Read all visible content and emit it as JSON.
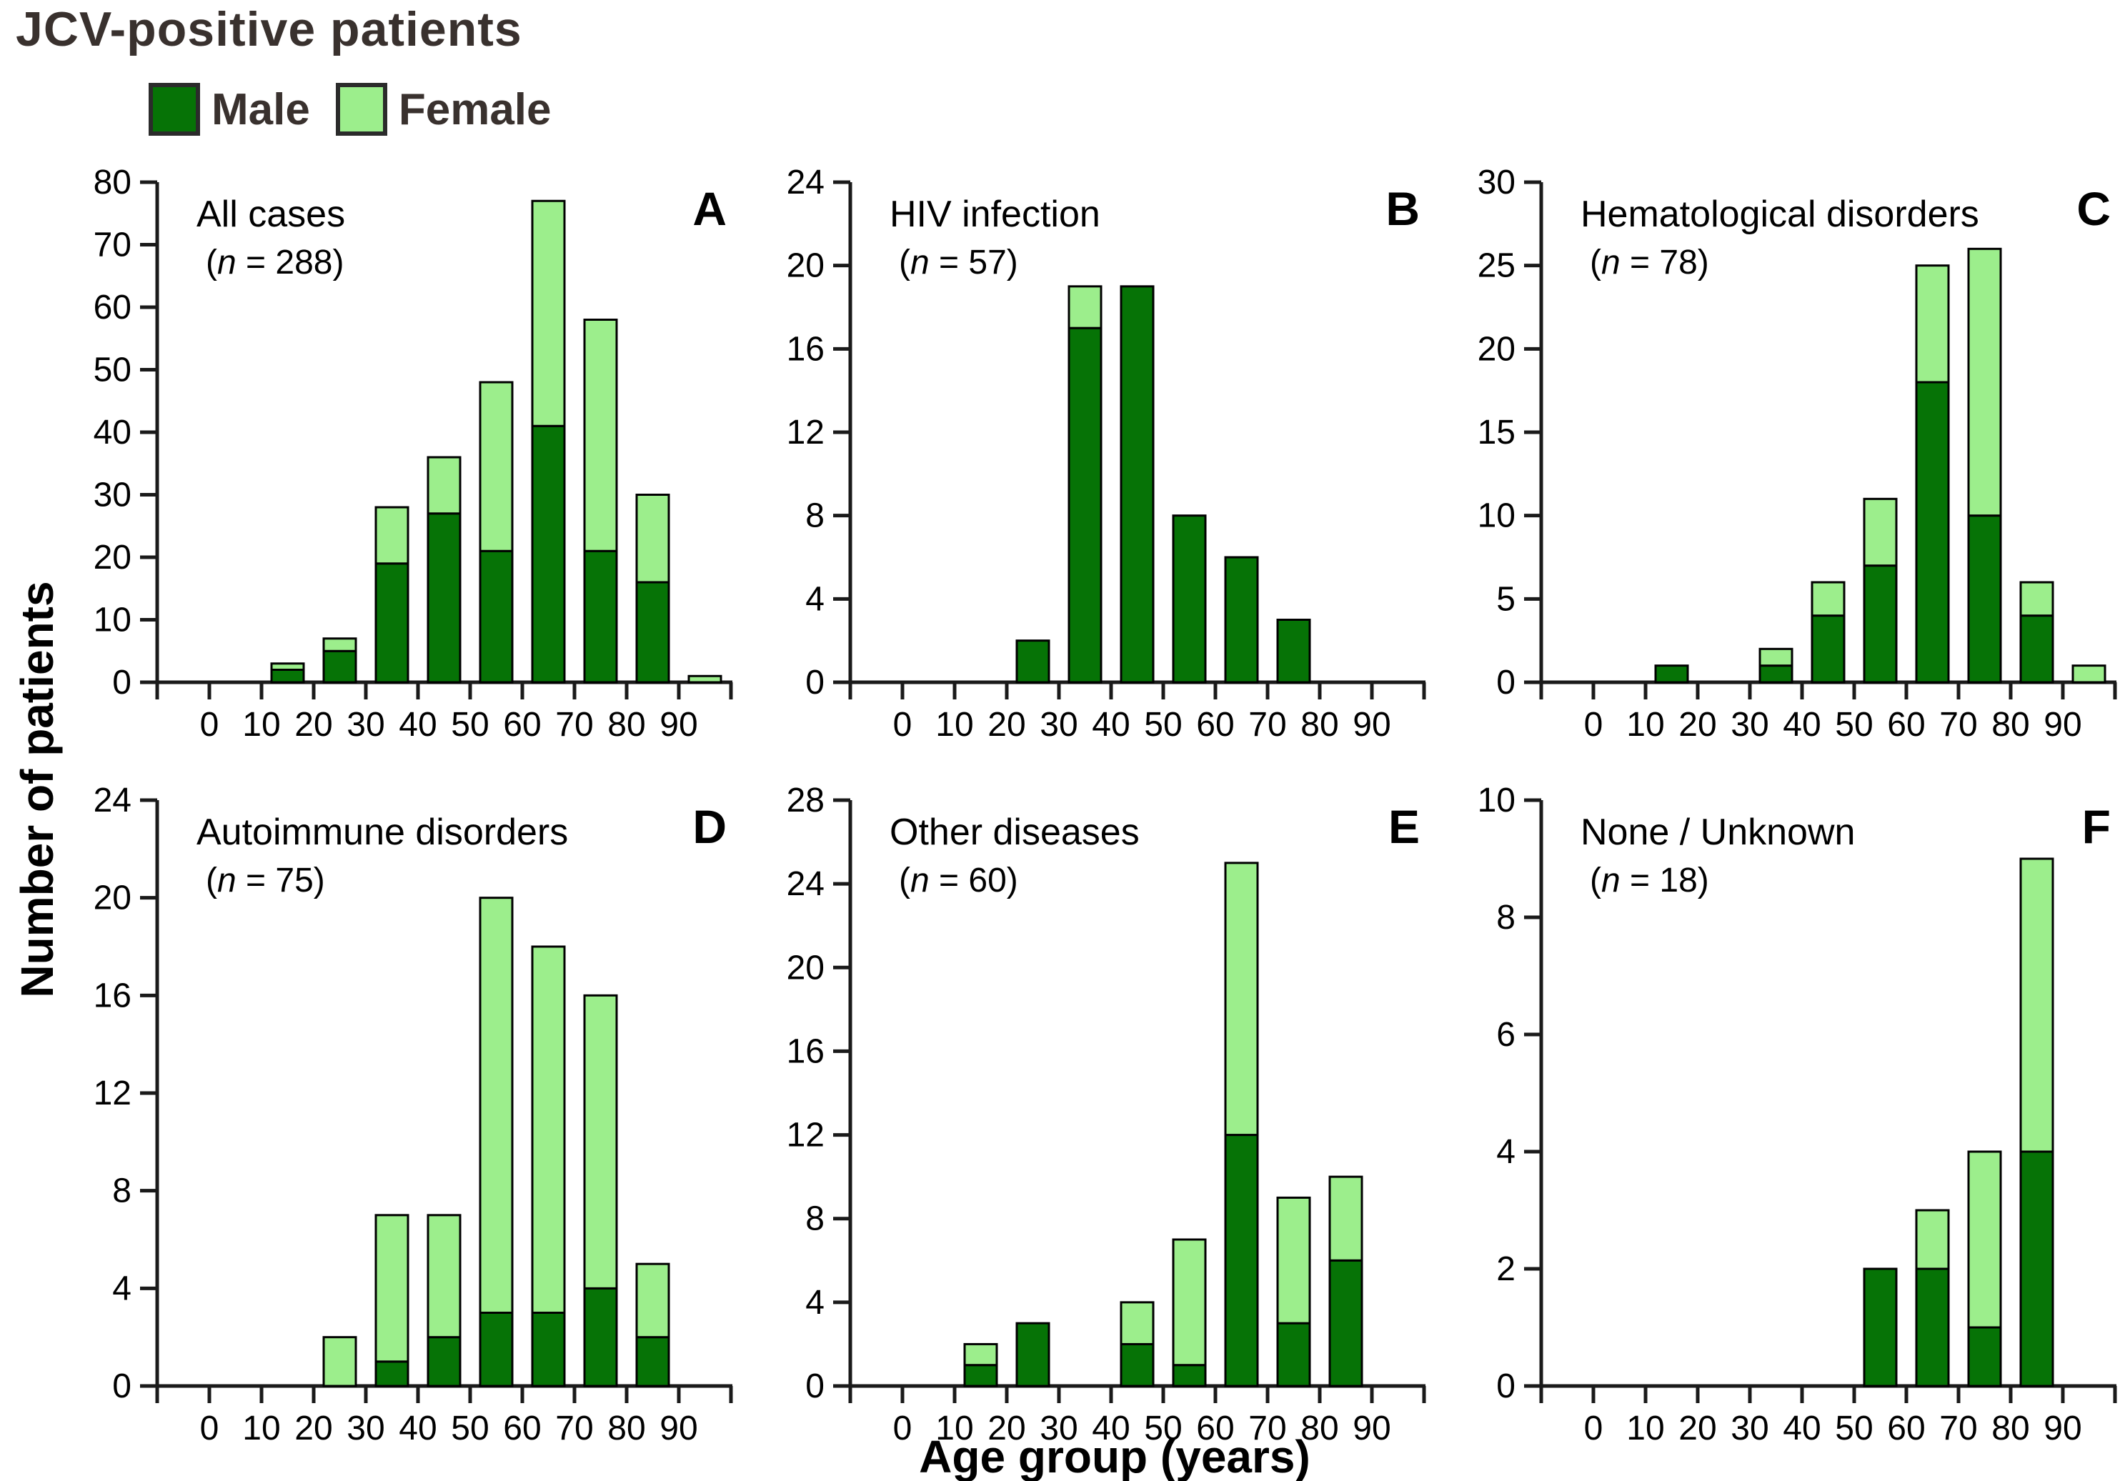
{
  "title": "JCV-positive patients",
  "legend": {
    "male_label": "Male",
    "female_label": "Female"
  },
  "colors": {
    "male": "#067306",
    "female": "#9CEE8C",
    "bar_border": "#000000",
    "axis": "#1A1A1A",
    "heading_text": "#39312E"
  },
  "axes": {
    "y_label": "Number of patients",
    "x_label": "Age group (years)"
  },
  "chart_data": [
    {
      "type": "bar",
      "stacked": true,
      "panel_letter": "A",
      "title": "All cases",
      "n_open": "(",
      "n_symbol": "n",
      "n_rest": " = 288)",
      "n_value": 288,
      "categories": [
        0,
        10,
        20,
        30,
        40,
        50,
        60,
        70,
        80,
        90
      ],
      "series": [
        {
          "name": "Male",
          "values": [
            0,
            2,
            5,
            19,
            27,
            21,
            41,
            21,
            16,
            0
          ]
        },
        {
          "name": "Female",
          "values": [
            0,
            1,
            2,
            9,
            9,
            27,
            36,
            37,
            14,
            1
          ]
        }
      ],
      "ylim": [
        0,
        80
      ],
      "ytick_step": 10
    },
    {
      "type": "bar",
      "stacked": true,
      "panel_letter": "B",
      "title": "HIV infection",
      "n_open": "(",
      "n_symbol": "n",
      "n_rest": " = 57)",
      "n_value": 57,
      "categories": [
        0,
        10,
        20,
        30,
        40,
        50,
        60,
        70,
        80,
        90
      ],
      "series": [
        {
          "name": "Male",
          "values": [
            0,
            0,
            2,
            17,
            19,
            8,
            6,
            3,
            0,
            0
          ]
        },
        {
          "name": "Female",
          "values": [
            0,
            0,
            0,
            2,
            0,
            0,
            0,
            0,
            0,
            0
          ]
        }
      ],
      "ylim": [
        0,
        24
      ],
      "ytick_step": 4
    },
    {
      "type": "bar",
      "stacked": true,
      "panel_letter": "C",
      "title": "Hematological disorders",
      "n_open": "(",
      "n_symbol": "n",
      "n_rest": " = 78)",
      "n_value": 78,
      "categories": [
        0,
        10,
        20,
        30,
        40,
        50,
        60,
        70,
        80,
        90
      ],
      "series": [
        {
          "name": "Male",
          "values": [
            0,
            1,
            0,
            1,
            4,
            7,
            18,
            10,
            4,
            0
          ]
        },
        {
          "name": "Female",
          "values": [
            0,
            0,
            0,
            1,
            2,
            4,
            7,
            16,
            2,
            1
          ]
        }
      ],
      "ylim": [
        0,
        30
      ],
      "ytick_step": 5
    },
    {
      "type": "bar",
      "stacked": true,
      "panel_letter": "D",
      "title": "Autoimmune disorders",
      "n_open": "(",
      "n_symbol": "n",
      "n_rest": " = 75)",
      "n_value": 75,
      "categories": [
        0,
        10,
        20,
        30,
        40,
        50,
        60,
        70,
        80,
        90
      ],
      "series": [
        {
          "name": "Male",
          "values": [
            0,
            0,
            0,
            1,
            2,
            3,
            3,
            4,
            2,
            0
          ]
        },
        {
          "name": "Female",
          "values": [
            0,
            0,
            2,
            6,
            5,
            17,
            15,
            12,
            3,
            0
          ]
        }
      ],
      "ylim": [
        0,
        24
      ],
      "ytick_step": 4
    },
    {
      "type": "bar",
      "stacked": true,
      "panel_letter": "E",
      "title": "Other diseases",
      "n_open": "(",
      "n_symbol": "n",
      "n_rest": " = 60)",
      "n_value": 60,
      "categories": [
        0,
        10,
        20,
        30,
        40,
        50,
        60,
        70,
        80,
        90
      ],
      "series": [
        {
          "name": "Male",
          "values": [
            0,
            1,
            3,
            0,
            2,
            1,
            12,
            3,
            6,
            0
          ]
        },
        {
          "name": "Female",
          "values": [
            0,
            1,
            0,
            0,
            2,
            6,
            13,
            6,
            4,
            0
          ]
        }
      ],
      "ylim": [
        0,
        28
      ],
      "ytick_step": 4
    },
    {
      "type": "bar",
      "stacked": true,
      "panel_letter": "F",
      "title": "None / Unknown",
      "n_open": "(",
      "n_symbol": "n",
      "n_rest": " = 18)",
      "n_value": 18,
      "categories": [
        0,
        10,
        20,
        30,
        40,
        50,
        60,
        70,
        80,
        90
      ],
      "series": [
        {
          "name": "Male",
          "values": [
            0,
            0,
            0,
            0,
            0,
            2,
            2,
            1,
            4,
            0
          ]
        },
        {
          "name": "Female",
          "values": [
            0,
            0,
            0,
            0,
            0,
            0,
            1,
            3,
            5,
            0
          ]
        }
      ],
      "ylim": [
        0,
        10
      ],
      "ytick_step": 2
    }
  ]
}
